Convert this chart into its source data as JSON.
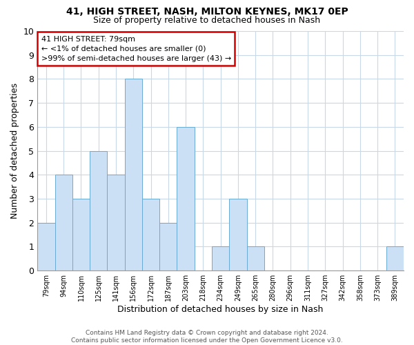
{
  "title1": "41, HIGH STREET, NASH, MILTON KEYNES, MK17 0EP",
  "title2": "Size of property relative to detached houses in Nash",
  "xlabel": "Distribution of detached houses by size in Nash",
  "ylabel": "Number of detached properties",
  "categories": [
    "79sqm",
    "94sqm",
    "110sqm",
    "125sqm",
    "141sqm",
    "156sqm",
    "172sqm",
    "187sqm",
    "203sqm",
    "218sqm",
    "234sqm",
    "249sqm",
    "265sqm",
    "280sqm",
    "296sqm",
    "311sqm",
    "327sqm",
    "342sqm",
    "358sqm",
    "373sqm",
    "389sqm"
  ],
  "values": [
    2,
    4,
    3,
    5,
    4,
    8,
    3,
    2,
    6,
    0,
    1,
    3,
    1,
    0,
    0,
    0,
    0,
    0,
    0,
    0,
    1
  ],
  "bar_color": "#cce0f5",
  "bar_edge_color": "#6aaad4",
  "ylim": [
    0,
    10
  ],
  "yticks": [
    0,
    1,
    2,
    3,
    4,
    5,
    6,
    7,
    8,
    9,
    10
  ],
  "annotation_title": "41 HIGH STREET: 79sqm",
  "annotation_line1": "← <1% of detached houses are smaller (0)",
  "annotation_line2": ">99% of semi-detached houses are larger (43) →",
  "annotation_box_color": "#ffffff",
  "annotation_box_edge": "#cc0000",
  "footer_line1": "Contains HM Land Registry data © Crown copyright and database right 2024.",
  "footer_line2": "Contains public sector information licensed under the Open Government Licence v3.0.",
  "background_color": "#ffffff",
  "grid_color": "#c8d8e8"
}
